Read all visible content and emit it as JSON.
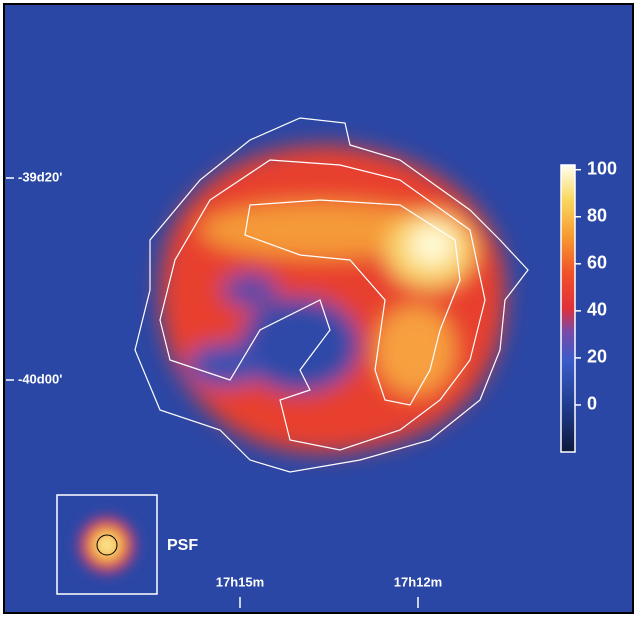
{
  "axes": {
    "dec_labels": [
      "-39d20'",
      "-40d00'"
    ],
    "ra_labels": [
      "17h15m",
      "17h12m"
    ]
  },
  "colorbar": {
    "range": [
      -20,
      102
    ],
    "ticks": [
      0,
      20,
      40,
      60,
      80,
      100
    ]
  },
  "psf_label": "PSF"
}
